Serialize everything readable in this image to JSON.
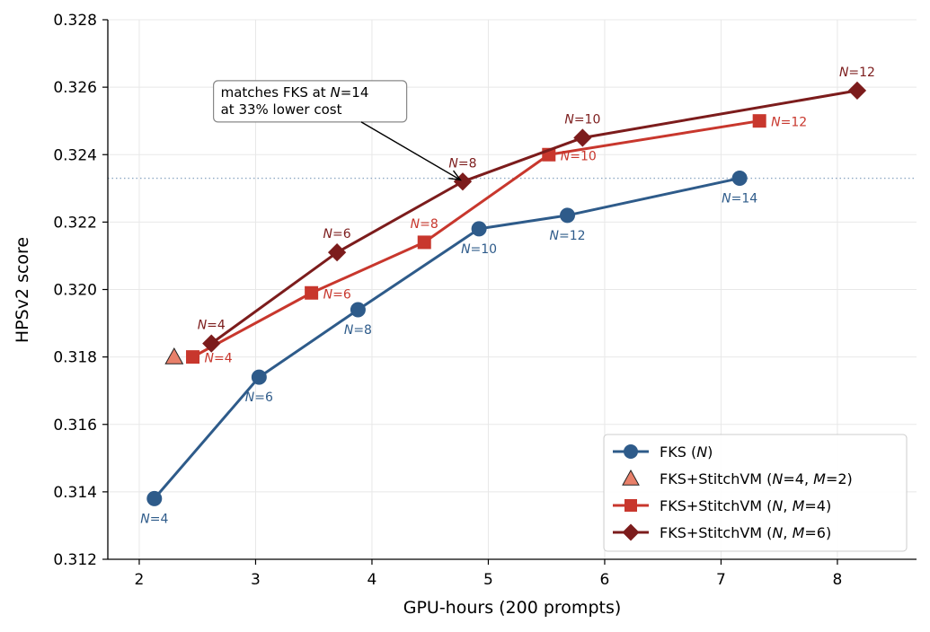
{
  "chart_data": {
    "type": "line",
    "xlabel": "GPU-hours (200 prompts)",
    "ylabel": "HPSv2 score",
    "xlim": [
      1.73,
      8.68
    ],
    "ylim": [
      0.312,
      0.328
    ],
    "xticks": [
      "2",
      "3",
      "4",
      "5",
      "6",
      "7",
      "8"
    ],
    "yticks": [
      "0.312",
      "0.314",
      "0.316",
      "0.318",
      "0.320",
      "0.322",
      "0.324",
      "0.326",
      "0.328"
    ],
    "grid": true,
    "legend_position": "lower-right",
    "reference_line": {
      "y": 0.3233,
      "style": "dotted",
      "color": "#8fa9c4"
    },
    "series": [
      {
        "name": "FKS (N)",
        "legend": {
          "pre": "FKS (",
          "items": [
            {
              "v": "N",
              "i": true
            },
            {
              "v": ")"
            }
          ]
        },
        "color": "#2e5b8a",
        "marker": "circle",
        "x": [
          2.13,
          3.03,
          3.88,
          4.92,
          5.68,
          7.16
        ],
        "y": [
          0.3138,
          0.3174,
          0.3194,
          0.3218,
          0.3222,
          0.3233
        ],
        "labels": [
          "4",
          "6",
          "8",
          "10",
          "12",
          "14"
        ],
        "label_pos": [
          "below",
          "below",
          "below",
          "below",
          "below",
          "below"
        ]
      },
      {
        "name": "FKS+StitchVM (N=4, M=2)",
        "legend": {
          "pre": "FKS+StitchVM (",
          "items": [
            {
              "v": "N",
              "i": true
            },
            {
              "v": "=4, "
            },
            {
              "v": "M",
              "i": true
            },
            {
              "v": "=2)"
            }
          ]
        },
        "color": "#e8806a",
        "marker": "triangle",
        "x": [
          2.3
        ],
        "y": [
          0.318
        ],
        "labels": [],
        "label_pos": []
      },
      {
        "name": "FKS+StitchVM (N, M=4)",
        "legend": {
          "pre": "FKS+StitchVM (",
          "items": [
            {
              "v": "N",
              "i": true
            },
            {
              "v": ", "
            },
            {
              "v": "M",
              "i": true
            },
            {
              "v": "=4)"
            }
          ]
        },
        "color": "#c8372d",
        "marker": "square",
        "x": [
          2.46,
          3.48,
          4.45,
          5.52,
          7.33
        ],
        "y": [
          0.318,
          0.3199,
          0.3214,
          0.324,
          0.325
        ],
        "labels": [
          "4",
          "6",
          "8",
          "10",
          "12"
        ],
        "label_pos": [
          "right",
          "right",
          "above",
          "right",
          "right"
        ]
      },
      {
        "name": "FKS+StitchVM (N, M=6)",
        "legend": {
          "pre": "FKS+StitchVM (",
          "items": [
            {
              "v": "N",
              "i": true
            },
            {
              "v": ", "
            },
            {
              "v": "M",
              "i": true
            },
            {
              "v": "=6)"
            }
          ]
        },
        "color": "#7c1c1c",
        "marker": "diamond",
        "x": [
          2.62,
          3.7,
          4.78,
          5.81,
          8.17
        ],
        "y": [
          0.3184,
          0.3211,
          0.3232,
          0.3245,
          0.3259
        ],
        "labels": [
          "4",
          "6",
          "8",
          "10",
          "12"
        ],
        "label_pos": [
          "above",
          "above",
          "above",
          "above",
          "above"
        ]
      }
    ],
    "annotation": {
      "lines": [
        [
          {
            "v": "matches FKS at "
          },
          {
            "v": "N",
            "i": true
          },
          {
            "v": "=14"
          }
        ],
        [
          {
            "v": "at 33% lower cost"
          }
        ]
      ],
      "text_x": 2.7,
      "text_y": 0.32598,
      "arrow_to_x": 4.76,
      "arrow_to_y": 0.32325
    }
  }
}
